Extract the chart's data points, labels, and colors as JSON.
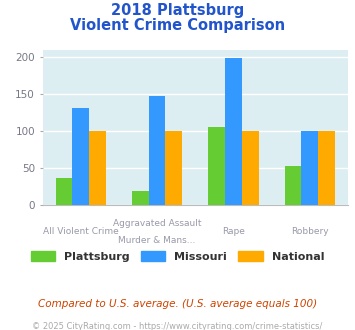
{
  "title_line1": "2018 Plattsburg",
  "title_line2": "Violent Crime Comparison",
  "top_labels": [
    "",
    "Aggravated Assault",
    "",
    ""
  ],
  "bottom_labels": [
    "All Violent Crime",
    "Murder & Mans...",
    "Rape",
    "Robbery"
  ],
  "plattsburg": [
    36,
    19,
    105,
    52
  ],
  "missouri": [
    131,
    147,
    199,
    100
  ],
  "national": [
    100,
    100,
    100,
    100
  ],
  "colors": {
    "plattsburg": "#66cc33",
    "missouri": "#3399ff",
    "national": "#ffaa00"
  },
  "ylim": [
    0,
    210
  ],
  "yticks": [
    0,
    50,
    100,
    150,
    200
  ],
  "background_color": "#ddeef2",
  "footnote1": "Compared to U.S. average. (U.S. average equals 100)",
  "footnote2": "© 2025 CityRating.com - https://www.cityrating.com/crime-statistics/",
  "legend_labels": [
    "Plattsburg",
    "Missouri",
    "National"
  ],
  "label_color": "#9999aa",
  "title_color": "#2255cc"
}
